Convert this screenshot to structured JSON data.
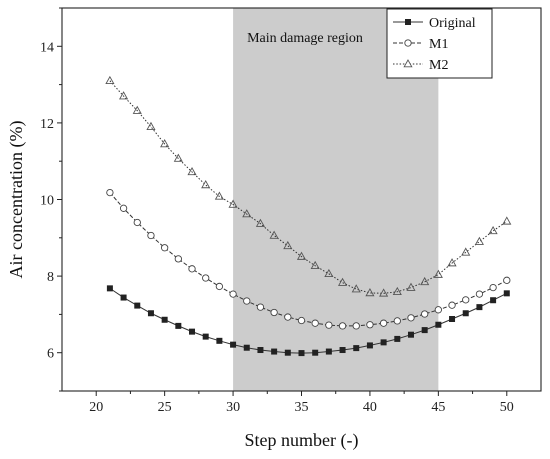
{
  "chart_data": {
    "type": "line",
    "xlabel": "Step number (-)",
    "ylabel": "Air concentration (%)",
    "xlim": [
      17.5,
      52.5
    ],
    "ylim": [
      5,
      15
    ],
    "xticks": [
      20,
      25,
      30,
      35,
      40,
      45,
      50
    ],
    "yticks": [
      6,
      8,
      10,
      12,
      14
    ],
    "grid": false,
    "legend_position": "top-right",
    "shaded_region": {
      "x": [
        30,
        45
      ],
      "label": "Main damage region",
      "color": "#cccccc"
    },
    "x": [
      21,
      22,
      23,
      24,
      25,
      26,
      27,
      28,
      29,
      30,
      31,
      32,
      33,
      34,
      35,
      36,
      37,
      38,
      39,
      40,
      41,
      42,
      43,
      44,
      45,
      46,
      47,
      48,
      49,
      50
    ],
    "series": [
      {
        "name": "Original",
        "marker": "filled-square",
        "line": "solid",
        "values": [
          7.68,
          7.44,
          7.23,
          7.03,
          6.86,
          6.7,
          6.55,
          6.42,
          6.31,
          6.21,
          6.13,
          6.07,
          6.03,
          6.0,
          5.99,
          6.0,
          6.03,
          6.07,
          6.12,
          6.19,
          6.27,
          6.36,
          6.47,
          6.59,
          6.73,
          6.88,
          7.03,
          7.19,
          7.37,
          7.55
        ]
      },
      {
        "name": "M1",
        "marker": "open-circle",
        "line": "dashed",
        "values": [
          10.18,
          9.77,
          9.4,
          9.06,
          8.74,
          8.45,
          8.19,
          7.95,
          7.73,
          7.53,
          7.35,
          7.19,
          7.05,
          6.93,
          6.84,
          6.77,
          6.72,
          6.7,
          6.7,
          6.73,
          6.77,
          6.83,
          6.91,
          7.01,
          7.12,
          7.24,
          7.38,
          7.53,
          7.7,
          7.89
        ]
      },
      {
        "name": "M2",
        "marker": "open-triangle",
        "line": "dotted",
        "values": [
          13.1,
          12.7,
          12.32,
          11.9,
          11.45,
          11.07,
          10.72,
          10.38,
          10.08,
          9.87,
          9.62,
          9.37,
          9.06,
          8.79,
          8.51,
          8.27,
          8.06,
          7.83,
          7.66,
          7.56,
          7.55,
          7.59,
          7.7,
          7.85,
          8.04,
          8.34,
          8.62,
          8.9,
          9.18,
          9.43
        ]
      }
    ]
  }
}
